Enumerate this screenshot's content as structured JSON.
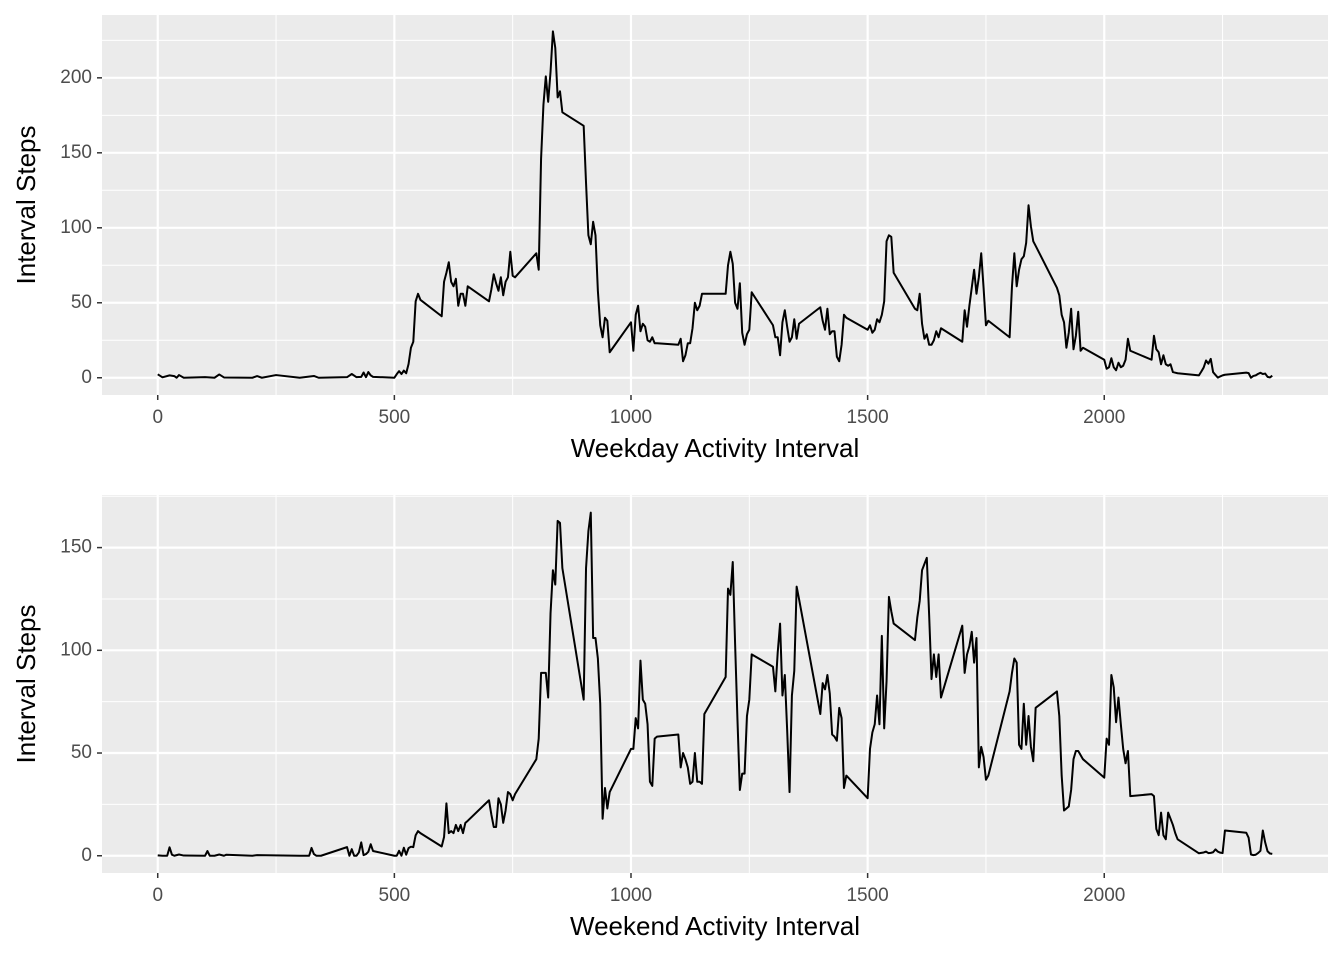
{
  "chart_data": [
    {
      "type": "line",
      "x_label": "Weekday Activity Interval",
      "y_label": "Interval Steps",
      "color": "#000000",
      "grid": true,
      "xlim": [
        -117.75,
        2472.75
      ],
      "ylim": [
        -11.5,
        241.9
      ],
      "xticks": [
        0,
        500,
        1000,
        1500,
        2000
      ],
      "yticks": [
        0,
        50,
        100,
        150,
        200
      ],
      "x_minor_breaks": [
        250,
        750,
        1250,
        1750,
        2250
      ],
      "y_minor_breaks": [
        25,
        75,
        125,
        175,
        225
      ],
      "x": [
        0,
        10,
        25,
        35,
        40,
        45,
        55,
        100,
        120,
        130,
        140,
        200,
        210,
        220,
        250,
        300,
        330,
        340,
        400,
        410,
        420,
        430,
        435,
        440,
        445,
        450,
        455,
        500,
        505,
        510,
        515,
        520,
        525,
        530,
        535,
        540,
        545,
        550,
        555,
        600,
        605,
        610,
        615,
        620,
        625,
        630,
        635,
        640,
        645,
        650,
        655,
        700,
        705,
        710,
        715,
        720,
        725,
        730,
        735,
        740,
        745,
        750,
        755,
        800,
        805,
        810,
        815,
        820,
        825,
        830,
        835,
        840,
        845,
        850,
        855,
        900,
        905,
        910,
        915,
        920,
        925,
        930,
        935,
        940,
        945,
        950,
        955,
        1000,
        1005,
        1010,
        1015,
        1020,
        1025,
        1030,
        1035,
        1040,
        1045,
        1050,
        1055,
        1100,
        1105,
        1110,
        1115,
        1120,
        1125,
        1130,
        1135,
        1140,
        1145,
        1150,
        1155,
        1200,
        1205,
        1210,
        1215,
        1220,
        1225,
        1230,
        1235,
        1240,
        1245,
        1250,
        1255,
        1300,
        1305,
        1310,
        1315,
        1320,
        1325,
        1330,
        1335,
        1340,
        1345,
        1350,
        1355,
        1400,
        1405,
        1410,
        1415,
        1420,
        1425,
        1430,
        1435,
        1440,
        1445,
        1450,
        1455,
        1500,
        1505,
        1510,
        1515,
        1520,
        1525,
        1530,
        1535,
        1540,
        1545,
        1550,
        1555,
        1600,
        1605,
        1610,
        1615,
        1620,
        1625,
        1630,
        1635,
        1640,
        1645,
        1650,
        1655,
        1700,
        1705,
        1710,
        1715,
        1720,
        1725,
        1730,
        1735,
        1740,
        1745,
        1750,
        1755,
        1800,
        1805,
        1810,
        1815,
        1820,
        1825,
        1830,
        1835,
        1840,
        1845,
        1850,
        1855,
        1900,
        1905,
        1910,
        1915,
        1920,
        1925,
        1930,
        1935,
        1940,
        1945,
        1950,
        1955,
        2000,
        2005,
        2010,
        2015,
        2020,
        2025,
        2030,
        2035,
        2040,
        2045,
        2050,
        2055,
        2100,
        2105,
        2110,
        2115,
        2120,
        2125,
        2130,
        2135,
        2140,
        2145,
        2150,
        2155,
        2200,
        2205,
        2210,
        2215,
        2220,
        2225,
        2230,
        2235,
        2240,
        2245,
        2250,
        2255,
        2300,
        2305,
        2310,
        2315,
        2320,
        2325,
        2330,
        2335,
        2340,
        2345,
        2350,
        2355
      ],
      "values": [
        2.3,
        0.3,
        1.6,
        1.1,
        0,
        1.8,
        0,
        0.4,
        0,
        2.2,
        0.2,
        0,
        1.1,
        0,
        1.8,
        0,
        1.2,
        0,
        0.4,
        2.5,
        0.4,
        0.6,
        3.5,
        0.4,
        3.8,
        1.6,
        0.6,
        0,
        2.4,
        4.4,
        2.5,
        4.8,
        3.0,
        9.2,
        20,
        24,
        51,
        56,
        52,
        41,
        64,
        70,
        77,
        64,
        61,
        66,
        48,
        56,
        56,
        48,
        61,
        51,
        59,
        69,
        63,
        58,
        67,
        55,
        64,
        67,
        84,
        68,
        67,
        83,
        72,
        146,
        182,
        201,
        184,
        204,
        231,
        220,
        187,
        191,
        177,
        168,
        130,
        95,
        89,
        104,
        95,
        58,
        35,
        27,
        40,
        38,
        17,
        37,
        18,
        42,
        48,
        31,
        36,
        34,
        25,
        24,
        27,
        23,
        23,
        22,
        26,
        11,
        15,
        23,
        23,
        33,
        50,
        45,
        48,
        56,
        56,
        56,
        75,
        84,
        76,
        50,
        46,
        63,
        30,
        22,
        29,
        32,
        57,
        35,
        27,
        27,
        15,
        37,
        45,
        34,
        24,
        27,
        39,
        26,
        36,
        47,
        38,
        32,
        46,
        29,
        31,
        31,
        14,
        11,
        22,
        42,
        40,
        32,
        35,
        30,
        32,
        39,
        37,
        42,
        51,
        91,
        95,
        94,
        70,
        46,
        45,
        56,
        36,
        26,
        29,
        22,
        22,
        25,
        31,
        27,
        33,
        24,
        45,
        34,
        48,
        60,
        72,
        56,
        67,
        83,
        60,
        35,
        38,
        27,
        61,
        83,
        61,
        72,
        79,
        81,
        90,
        115,
        101,
        91,
        88,
        60,
        55,
        42,
        37,
        20,
        30,
        46,
        19,
        28,
        44,
        18,
        20,
        12,
        6,
        7,
        13,
        7,
        5,
        10,
        7,
        8,
        12,
        26,
        18,
        12,
        28,
        19,
        17,
        9,
        15,
        9,
        8,
        9,
        3.8,
        3.4,
        3.0,
        1.6,
        4.1,
        6.8,
        11.5,
        9.4,
        12.6,
        3.7,
        1.9,
        0.1,
        0.9,
        1.6,
        2.0,
        3.4,
        3.1,
        0,
        1.2,
        1.6,
        2.6,
        3.3,
        2.5,
        2.8,
        0.6,
        0.2,
        1.4
      ]
    },
    {
      "type": "line",
      "x_label": "Weekend Activity Interval",
      "y_label": "Interval Steps",
      "color": "#000000",
      "grid": true,
      "xlim": [
        -117.75,
        2472.75
      ],
      "ylim": [
        -8.4,
        175.6
      ],
      "xticks": [
        0,
        500,
        1000,
        1500,
        2000
      ],
      "yticks": [
        0,
        50,
        100,
        150
      ],
      "x_minor_breaks": [
        250,
        750,
        1250,
        1750,
        2250
      ],
      "y_minor_breaks": [
        25,
        75,
        125,
        175
      ],
      "x": [
        0,
        10,
        20,
        25,
        30,
        35,
        45,
        55,
        100,
        105,
        110,
        120,
        130,
        140,
        145,
        200,
        210,
        300,
        320,
        325,
        330,
        335,
        345,
        400,
        405,
        410,
        415,
        420,
        425,
        430,
        435,
        440,
        445,
        450,
        455,
        500,
        505,
        510,
        515,
        520,
        525,
        530,
        535,
        540,
        545,
        550,
        555,
        600,
        605,
        610,
        615,
        620,
        625,
        630,
        635,
        640,
        645,
        650,
        655,
        700,
        705,
        710,
        715,
        720,
        725,
        730,
        735,
        740,
        745,
        750,
        755,
        800,
        805,
        810,
        815,
        820,
        825,
        830,
        835,
        840,
        845,
        850,
        855,
        900,
        905,
        910,
        915,
        920,
        925,
        930,
        935,
        940,
        945,
        950,
        955,
        1000,
        1005,
        1010,
        1015,
        1020,
        1025,
        1030,
        1035,
        1040,
        1045,
        1050,
        1055,
        1100,
        1105,
        1110,
        1115,
        1120,
        1125,
        1130,
        1135,
        1140,
        1145,
        1150,
        1155,
        1200,
        1205,
        1210,
        1215,
        1220,
        1225,
        1230,
        1235,
        1240,
        1245,
        1250,
        1255,
        1300,
        1305,
        1310,
        1315,
        1320,
        1325,
        1330,
        1335,
        1340,
        1345,
        1350,
        1355,
        1400,
        1405,
        1410,
        1415,
        1420,
        1425,
        1430,
        1435,
        1440,
        1445,
        1450,
        1455,
        1500,
        1505,
        1510,
        1515,
        1520,
        1525,
        1530,
        1535,
        1540,
        1545,
        1550,
        1555,
        1600,
        1605,
        1610,
        1615,
        1620,
        1625,
        1630,
        1635,
        1640,
        1645,
        1650,
        1655,
        1700,
        1705,
        1710,
        1715,
        1720,
        1725,
        1730,
        1735,
        1740,
        1745,
        1750,
        1755,
        1800,
        1805,
        1810,
        1815,
        1820,
        1825,
        1830,
        1835,
        1840,
        1845,
        1850,
        1855,
        1900,
        1905,
        1910,
        1915,
        1920,
        1925,
        1930,
        1935,
        1940,
        1945,
        1950,
        1955,
        2000,
        2005,
        2010,
        2015,
        2020,
        2025,
        2030,
        2035,
        2040,
        2045,
        2050,
        2055,
        2100,
        2105,
        2110,
        2115,
        2120,
        2125,
        2130,
        2135,
        2140,
        2145,
        2150,
        2155,
        2200,
        2205,
        2210,
        2215,
        2220,
        2225,
        2230,
        2235,
        2240,
        2245,
        2250,
        2255,
        2300,
        2305,
        2310,
        2315,
        2320,
        2325,
        2330,
        2335,
        2340,
        2345,
        2350,
        2355
      ],
      "values": [
        0.2,
        0,
        0,
        4.1,
        0.5,
        0,
        0.6,
        0.1,
        0,
        2.3,
        0,
        0,
        0.6,
        0,
        0.5,
        0,
        0.3,
        0,
        0,
        3.8,
        0.8,
        0,
        0,
        4.2,
        0,
        3.2,
        0,
        0,
        1.6,
        6.5,
        0.3,
        0.8,
        1.9,
        5.6,
        2.3,
        0,
        0,
        2.4,
        0,
        3.9,
        0.5,
        3.7,
        4.4,
        4.2,
        10,
        12,
        11,
        4.5,
        9.1,
        25.5,
        11,
        12,
        11,
        15,
        12,
        15,
        11,
        16,
        17,
        27,
        20,
        14,
        14,
        28,
        25,
        16,
        22,
        31,
        30,
        27,
        30,
        47,
        57,
        89,
        89,
        89,
        77,
        118,
        139,
        132,
        163,
        162,
        140,
        76,
        140,
        158,
        167,
        106,
        106,
        96,
        74,
        18,
        33,
        23,
        31,
        52,
        52,
        67,
        62,
        95,
        76,
        74,
        64,
        36,
        34,
        57,
        58,
        59,
        43,
        50,
        47,
        43,
        35,
        36,
        50,
        36,
        36,
        35,
        69,
        87,
        130,
        127,
        143,
        103,
        66,
        32,
        40,
        40,
        68,
        76,
        98,
        92,
        80,
        99,
        113,
        78,
        88,
        61,
        31,
        78,
        90,
        131,
        125,
        69,
        84,
        81,
        88,
        79,
        59,
        58,
        56,
        72,
        67,
        33,
        39,
        28,
        52,
        60,
        64,
        78,
        64,
        107,
        62,
        85,
        126,
        119,
        113,
        105,
        116,
        124,
        139,
        142,
        145,
        117,
        86,
        98,
        87,
        98,
        77,
        112,
        89,
        98,
        102,
        109,
        94,
        106,
        43,
        53,
        48,
        37,
        39,
        80,
        89,
        96,
        94,
        54,
        52,
        74,
        54,
        68,
        53,
        46,
        72,
        80,
        68,
        39,
        22,
        23,
        24,
        32,
        47,
        51,
        51,
        49,
        47,
        38,
        57,
        54,
        88,
        82,
        65,
        77,
        64,
        52,
        45,
        51,
        29,
        30,
        29,
        13,
        10,
        21,
        10,
        8,
        21,
        18,
        15,
        11,
        8,
        1.2,
        1.4,
        1.6,
        2,
        1.3,
        1.4,
        1.7,
        3.1,
        2,
        1.5,
        1.3,
        12.3,
        11.2,
        8.8,
        0.6,
        0.3,
        0.5,
        1.3,
        2.4,
        12.3,
        6.5,
        2.2,
        1.1,
        0.9
      ]
    }
  ]
}
